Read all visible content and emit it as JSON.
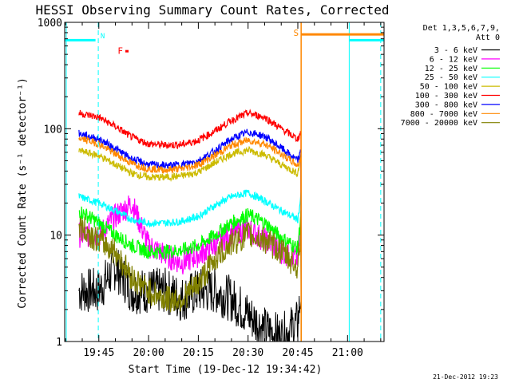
{
  "chart_data": {
    "type": "line",
    "title": "HESSI Observing Summary Count Rates, Corrected",
    "xlabel": "Start Time (19-Dec-12 19:34:42)",
    "ylabel": "Corrected Count Rate (s⁻¹ detector⁻¹)",
    "footer": "21-Dec-2012 19:23",
    "xlim": [
      "19:34:42",
      "21:11:00"
    ],
    "ylim": [
      1,
      1000
    ],
    "yscale": "log",
    "grid": false,
    "x_tick_labels": [
      "19:45",
      "20:00",
      "20:15",
      "20:30",
      "20:45",
      "21:00"
    ],
    "y_tick_labels": [
      "1",
      "10",
      "100",
      "1000"
    ],
    "legend": {
      "placement": "right",
      "header": [
        "Det 1,3,5,6,7,9,",
        "Att 0"
      ],
      "entries": [
        {
          "label": "3 - 6 keV",
          "color": "#000000"
        },
        {
          "label": "6 - 12 keV",
          "color": "#ff00ff"
        },
        {
          "label": "12 - 25 keV",
          "color": "#00ff00"
        },
        {
          "label": "25 - 50 keV",
          "color": "#00ffff"
        },
        {
          "label": "50 - 100 keV",
          "color": "#ccbb00"
        },
        {
          "label": "100 - 300 keV",
          "color": "#ff0000"
        },
        {
          "label": "300 - 800 keV",
          "color": "#0000ff"
        },
        {
          "label": "800 - 7000 keV",
          "color": "#ff8800"
        },
        {
          "label": "7000 - 20000 keV",
          "color": "#808000"
        }
      ]
    },
    "flags": [
      {
        "label": "N",
        "color": "#00ffff"
      },
      {
        "label": "F",
        "color": "#ff0000"
      },
      {
        "label": "S",
        "color": "#ff8800"
      }
    ],
    "series": [
      {
        "name": "3 - 6 keV",
        "color": "#000000",
        "x": [
          "19:39",
          "19:45",
          "19:50",
          "19:55",
          "20:00",
          "20:05",
          "20:10",
          "20:15",
          "20:20",
          "20:25",
          "20:30",
          "20:35",
          "20:40",
          "20:45",
          "20:46"
        ],
        "y": [
          3,
          3,
          5,
          3,
          3,
          3,
          2.5,
          3,
          3,
          2.5,
          1.8,
          1.3,
          1.1,
          1.5,
          3
        ]
      },
      {
        "name": "6 - 12 keV",
        "color": "#ff00ff",
        "x": [
          "19:39",
          "19:45",
          "19:50",
          "19:55",
          "20:00",
          "20:05",
          "20:10",
          "20:15",
          "20:20",
          "20:25",
          "20:30",
          "20:35",
          "20:40",
          "20:45",
          "20:46"
        ],
        "y": [
          10,
          10,
          15,
          20,
          8,
          6.5,
          5.5,
          6.5,
          8,
          10.5,
          11.5,
          9,
          7,
          6,
          15
        ]
      },
      {
        "name": "12 - 25 keV",
        "color": "#00ff00",
        "x": [
          "19:39",
          "19:45",
          "19:50",
          "19:55",
          "20:00",
          "20:05",
          "20:10",
          "20:15",
          "20:20",
          "20:25",
          "20:30",
          "20:35",
          "20:40",
          "20:45",
          "20:46"
        ],
        "y": [
          17,
          13,
          10,
          8,
          7,
          7,
          7.2,
          8,
          10,
          13,
          15.5,
          13,
          9.5,
          7.5,
          17
        ]
      },
      {
        "name": "25 - 50 keV",
        "color": "#00ffff",
        "x": [
          "19:39",
          "19:45",
          "19:50",
          "19:55",
          "20:00",
          "20:05",
          "20:10",
          "20:15",
          "20:20",
          "20:25",
          "20:30",
          "20:35",
          "20:40",
          "20:45",
          "20:46"
        ],
        "y": [
          23,
          20,
          17,
          14,
          13,
          13,
          13.5,
          15,
          19,
          23,
          25,
          21,
          17,
          14,
          24
        ]
      },
      {
        "name": "50 - 100 keV",
        "color": "#ccbb00",
        "x": [
          "19:39",
          "19:45",
          "19:50",
          "19:55",
          "20:00",
          "20:05",
          "20:10",
          "20:15",
          "20:20",
          "20:25",
          "20:30",
          "20:35",
          "20:40",
          "20:45",
          "20:46"
        ],
        "y": [
          62,
          56,
          46,
          38,
          35,
          35,
          36,
          39,
          48,
          58,
          63,
          57,
          46,
          38,
          60
        ]
      },
      {
        "name": "100 - 300 keV",
        "color": "#ff0000",
        "x": [
          "19:39",
          "19:45",
          "19:50",
          "19:55",
          "20:00",
          "20:05",
          "20:10",
          "20:15",
          "20:20",
          "20:25",
          "20:30",
          "20:35",
          "20:40",
          "20:45",
          "20:46"
        ],
        "y": [
          140,
          128,
          105,
          83,
          72,
          70,
          71,
          78,
          95,
          120,
          140,
          128,
          100,
          80,
          95
        ]
      },
      {
        "name": "300 - 800 keV",
        "color": "#0000ff",
        "x": [
          "19:39",
          "19:45",
          "19:50",
          "19:55",
          "20:00",
          "20:05",
          "20:10",
          "20:15",
          "20:20",
          "20:25",
          "20:30",
          "20:35",
          "20:40",
          "20:45",
          "20:46"
        ],
        "y": [
          90,
          80,
          65,
          52,
          46,
          45,
          46,
          50,
          62,
          80,
          93,
          85,
          66,
          50,
          62
        ]
      },
      {
        "name": "800 - 7000 keV",
        "color": "#ff8800",
        "x": [
          "19:39",
          "19:45",
          "19:50",
          "19:55",
          "20:00",
          "20:05",
          "20:10",
          "20:15",
          "20:20",
          "20:25",
          "20:30",
          "20:35",
          "20:40",
          "20:45",
          "20:46"
        ],
        "y": [
          82,
          72,
          58,
          47,
          42,
          41,
          42,
          46,
          56,
          70,
          78,
          72,
          58,
          45,
          54
        ]
      },
      {
        "name": "7000 - 20000 keV",
        "color": "#808000",
        "x": [
          "19:39",
          "19:45",
          "19:50",
          "19:55",
          "20:00",
          "20:05",
          "20:10",
          "20:15",
          "20:20",
          "20:25",
          "20:30",
          "20:35",
          "20:40",
          "20:45",
          "20:46"
        ],
        "y": [
          12,
          9,
          7,
          4,
          3,
          2.5,
          2.5,
          3.5,
          6,
          8.5,
          10,
          9,
          7,
          5,
          12
        ]
      }
    ]
  }
}
